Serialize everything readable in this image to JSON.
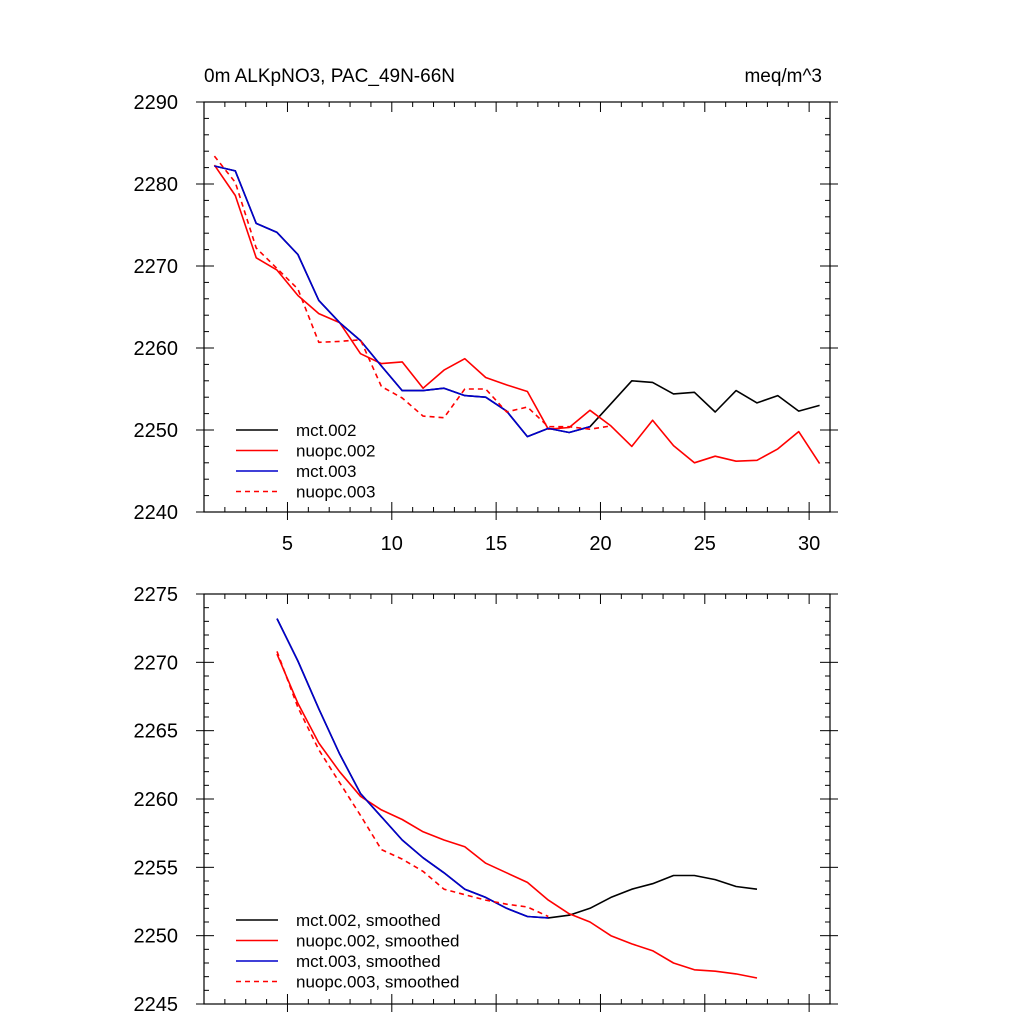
{
  "chart_data": [
    {
      "type": "line",
      "title": "0m ALKpNO3, PAC_49N-66N",
      "units": "meq/m^3",
      "xlim": [
        1,
        31
      ],
      "ylim": [
        2240,
        2290
      ],
      "x_tick_labels": [
        5,
        10,
        15,
        20,
        25,
        30
      ],
      "y_tick_labels": [
        2240,
        2250,
        2260,
        2270,
        2280,
        2290
      ],
      "legend_position": "bottom-left",
      "series": [
        {
          "name": "mct.002",
          "color": "#000000",
          "dash": "solid",
          "x": [
            1.5,
            2.5,
            3.5,
            4.5,
            5.5,
            6.5,
            7.5,
            8.5,
            9.5,
            10.5,
            11.5,
            12.5,
            13.5,
            14.5,
            15.5,
            16.5,
            17.5,
            18.5,
            19.5,
            20.5,
            21.5,
            22.5,
            23.5,
            24.5,
            25.5,
            26.5,
            27.5,
            28.5,
            29.5,
            30.5
          ],
          "values": [
            2282.2,
            2281.6,
            2275.2,
            2274.1,
            2271.4,
            2265.8,
            2263.1,
            2260.9,
            2257.8,
            2254.8,
            2254.8,
            2255.1,
            2254.2,
            2254.0,
            2252.3,
            2249.2,
            2250.2,
            2249.7,
            2250.4,
            2253.2,
            2256.0,
            2255.8,
            2254.4,
            2254.6,
            2252.2,
            2254.8,
            2253.3,
            2254.2,
            2252.3,
            2253.0
          ]
        },
        {
          "name": "nuopc.002",
          "color": "#ff0000",
          "dash": "solid",
          "x": [
            1.5,
            2.5,
            3.5,
            4.5,
            5.5,
            6.5,
            7.5,
            8.5,
            9.5,
            10.5,
            11.5,
            12.5,
            13.5,
            14.5,
            15.5,
            16.5,
            17.5,
            18.5,
            19.5,
            20.5,
            21.5,
            22.5,
            23.5,
            24.5,
            25.5,
            26.5,
            27.5,
            28.5,
            29.5,
            30.5
          ],
          "values": [
            2282.3,
            2278.6,
            2271.0,
            2269.5,
            2266.4,
            2264.2,
            2263.1,
            2259.3,
            2258.1,
            2258.3,
            2255.1,
            2257.3,
            2258.7,
            2256.4,
            2255.5,
            2254.7,
            2250.1,
            2250.3,
            2252.4,
            2250.5,
            2248.0,
            2251.2,
            2248.1,
            2246.0,
            2246.8,
            2246.2,
            2246.3,
            2247.7,
            2249.8,
            2245.9
          ]
        },
        {
          "name": "mct.003",
          "color": "#0000cc",
          "dash": "solid",
          "x": [
            1.5,
            2.5,
            3.5,
            4.5,
            5.5,
            6.5,
            7.5,
            8.5,
            9.5,
            10.5,
            11.5,
            12.5,
            13.5,
            14.5,
            15.5,
            16.5,
            17.5,
            18.5,
            19.5
          ],
          "values": [
            2282.2,
            2281.6,
            2275.2,
            2274.1,
            2271.4,
            2265.8,
            2263.1,
            2260.9,
            2257.8,
            2254.8,
            2254.8,
            2255.1,
            2254.2,
            2254.0,
            2252.3,
            2249.2,
            2250.2,
            2249.7,
            2250.4
          ]
        },
        {
          "name": "nuopc.003",
          "color": "#ff0000",
          "dash": "dashed",
          "x": [
            1.5,
            2.5,
            3.5,
            4.5,
            5.5,
            6.5,
            7.5,
            8.5,
            9.5,
            10.5,
            11.5,
            12.5,
            13.5,
            14.5,
            15.5,
            16.5,
            17.5,
            18.5,
            19.5,
            20.5
          ],
          "values": [
            2283.4,
            2280.2,
            2272.2,
            2269.7,
            2267.2,
            2260.7,
            2260.8,
            2261.0,
            2255.3,
            2253.9,
            2251.7,
            2251.5,
            2255.0,
            2255.0,
            2252.2,
            2252.8,
            2250.4,
            2250.4,
            2250.1,
            2250.5
          ]
        }
      ]
    },
    {
      "type": "line",
      "title": "",
      "xlim": [
        1,
        31
      ],
      "ylim": [
        2245,
        2275
      ],
      "x_tick_labels": [],
      "y_tick_labels": [
        2245,
        2250,
        2255,
        2260,
        2265,
        2270,
        2275
      ],
      "legend_position": "bottom-left",
      "series": [
        {
          "name": "mct.002, smoothed",
          "color": "#000000",
          "dash": "solid",
          "x": [
            4.5,
            5.5,
            6.5,
            7.5,
            8.5,
            9.5,
            10.5,
            11.5,
            12.5,
            13.5,
            14.5,
            15.5,
            16.5,
            17.5,
            18.5,
            19.5,
            20.5,
            21.5,
            22.5,
            23.5,
            24.5,
            25.5,
            26.5,
            27.5
          ],
          "values": [
            2273.2,
            2270.1,
            2266.6,
            2263.3,
            2260.4,
            2258.7,
            2257.0,
            2255.7,
            2254.6,
            2253.4,
            2252.8,
            2252.0,
            2251.4,
            2251.3,
            2251.5,
            2252.0,
            2252.8,
            2253.4,
            2253.8,
            2254.4,
            2254.4,
            2254.1,
            2253.6,
            2253.4
          ]
        },
        {
          "name": "nuopc.002, smoothed",
          "color": "#ff0000",
          "dash": "solid",
          "x": [
            4.5,
            5.5,
            6.5,
            7.5,
            8.5,
            9.5,
            10.5,
            11.5,
            12.5,
            13.5,
            14.5,
            15.5,
            16.5,
            17.5,
            18.5,
            19.5,
            20.5,
            21.5,
            22.5,
            23.5,
            24.5,
            25.5,
            26.5,
            27.5
          ],
          "values": [
            2270.6,
            2267.0,
            2264.1,
            2262.0,
            2260.2,
            2259.2,
            2258.5,
            2257.6,
            2257.0,
            2256.5,
            2255.3,
            2254.6,
            2253.9,
            2252.6,
            2251.6,
            2251.0,
            2250.0,
            2249.4,
            2248.9,
            2248.0,
            2247.5,
            2247.4,
            2247.2,
            2246.9
          ]
        },
        {
          "name": "mct.003, smoothed",
          "color": "#0000cc",
          "dash": "solid",
          "x": [
            4.5,
            5.5,
            6.5,
            7.5,
            8.5,
            9.5,
            10.5,
            11.5,
            12.5,
            13.5,
            14.5,
            15.5,
            16.5,
            17.5
          ],
          "values": [
            2273.2,
            2270.1,
            2266.6,
            2263.3,
            2260.4,
            2258.7,
            2257.0,
            2255.7,
            2254.6,
            2253.4,
            2252.8,
            2252.0,
            2251.4,
            2251.3
          ]
        },
        {
          "name": "nuopc.003, smoothed",
          "color": "#ff0000",
          "dash": "dashed",
          "x": [
            4.5,
            5.5,
            6.5,
            7.5,
            8.5,
            9.5,
            10.5,
            11.5,
            12.5,
            13.5,
            14.5,
            15.5,
            16.5,
            17.5
          ],
          "values": [
            2270.8,
            2266.7,
            2263.6,
            2261.2,
            2258.8,
            2256.3,
            2255.6,
            2254.7,
            2253.4,
            2253.0,
            2252.6,
            2252.3,
            2252.1,
            2251.4
          ]
        }
      ]
    }
  ]
}
